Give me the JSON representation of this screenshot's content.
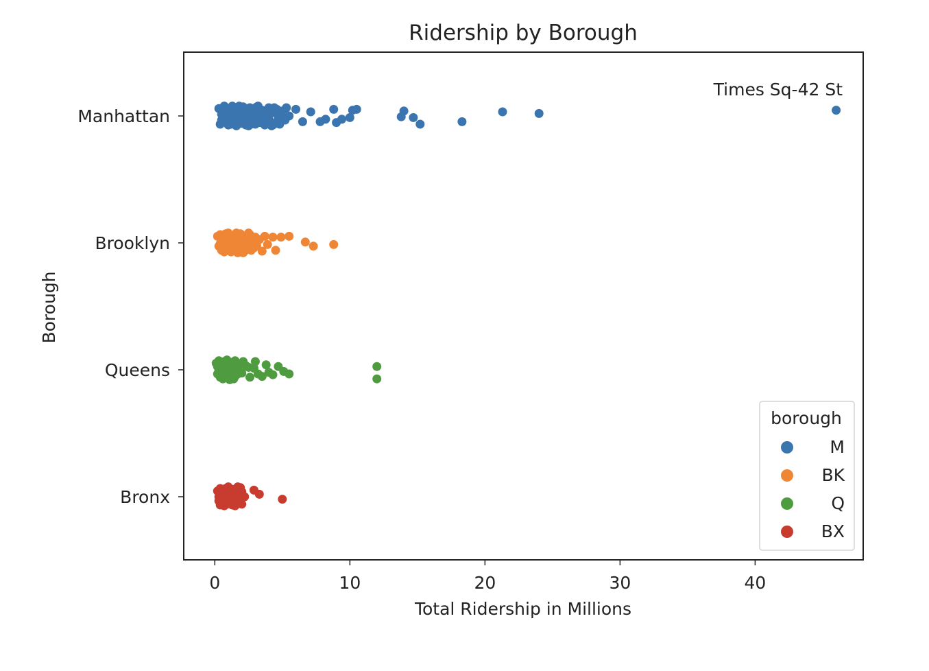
{
  "chart_data": {
    "type": "scatter",
    "title": "Ridership by Borough",
    "xlabel": "Total Ridership in Millions",
    "ylabel": "Borough",
    "xlim": [
      -2.3,
      48
    ],
    "xticks": [
      0,
      10,
      20,
      30,
      40
    ],
    "grid": false,
    "categories": [
      "Manhattan",
      "Brooklyn",
      "Queens",
      "Bronx"
    ],
    "annotation": {
      "text": "Times Sq-42 St",
      "x": 46.0,
      "category": "Manhattan"
    },
    "legend": {
      "title": "borough",
      "placement": "lower-right"
    },
    "series": [
      {
        "name": "M",
        "category": "Manhattan",
        "color": "#3a75b0",
        "points": [
          [
            0.3,
            -0.09
          ],
          [
            0.5,
            0.05
          ],
          [
            0.7,
            -0.12
          ],
          [
            0.9,
            0.08
          ],
          [
            1.1,
            -0.03
          ],
          [
            1.2,
            0.1
          ],
          [
            1.4,
            -0.08
          ],
          [
            1.5,
            0.02
          ],
          [
            1.6,
            0.12
          ],
          [
            1.7,
            -0.1
          ],
          [
            1.8,
            0.06
          ],
          [
            1.9,
            -0.04
          ],
          [
            2.0,
            0.09
          ],
          [
            2.1,
            -0.11
          ],
          [
            2.2,
            0.03
          ],
          [
            2.3,
            0.11
          ],
          [
            2.4,
            -0.06
          ],
          [
            2.5,
            0.07
          ],
          [
            2.6,
            -0.02
          ],
          [
            2.7,
            0.1
          ],
          [
            2.8,
            -0.09
          ],
          [
            2.9,
            0.04
          ],
          [
            3.0,
            -0.05
          ],
          [
            3.1,
            0.08
          ],
          [
            3.2,
            -0.12
          ],
          [
            3.3,
            0.01
          ],
          [
            3.4,
            0.06
          ],
          [
            3.5,
            -0.07
          ],
          [
            3.6,
            0.09
          ],
          [
            3.7,
            -0.03
          ],
          [
            3.8,
            0.05
          ],
          [
            4.0,
            -0.1
          ],
          [
            4.1,
            0.07
          ],
          [
            4.2,
            0.12
          ],
          [
            4.3,
            -0.04
          ],
          [
            4.5,
            0.09
          ],
          [
            4.6,
            -0.08
          ],
          [
            4.7,
            0.03
          ],
          [
            4.8,
            0.1
          ],
          [
            5.0,
            -0.06
          ],
          [
            5.2,
            0.05
          ],
          [
            5.3,
            -0.1
          ],
          [
            5.5,
            0.0
          ],
          [
            0.4,
            0.1
          ],
          [
            0.6,
            -0.05
          ],
          [
            0.8,
            0.02
          ],
          [
            1.0,
            0.11
          ],
          [
            1.3,
            -0.12
          ],
          [
            1.6,
            -0.06
          ],
          [
            1.9,
            0.04
          ],
          [
            2.2,
            -0.09
          ],
          [
            2.5,
            0.12
          ],
          [
            2.8,
            0.02
          ],
          [
            3.1,
            -0.11
          ],
          [
            3.4,
            -0.03
          ],
          [
            3.7,
            0.11
          ],
          [
            4.0,
            0.04
          ],
          [
            4.4,
            -0.1
          ],
          [
            0.6,
            0.07
          ],
          [
            1.0,
            -0.09
          ],
          [
            1.4,
            0.05
          ],
          [
            1.8,
            -0.12
          ],
          [
            2.0,
            0.01
          ],
          [
            2.4,
            0.06
          ],
          [
            2.7,
            -0.06
          ],
          [
            3.0,
            0.1
          ],
          [
            3.5,
            0.03
          ],
          [
            3.9,
            -0.07
          ],
          [
            4.3,
            0.11
          ],
          [
            0.5,
            -0.02
          ],
          [
            1.2,
            0.03
          ],
          [
            1.7,
            0.09
          ],
          [
            2.1,
            0.06
          ],
          [
            2.6,
            -0.1
          ],
          [
            3.3,
            0.08
          ],
          [
            3.6,
            -0.01
          ],
          [
            4.9,
            -0.03
          ],
          [
            6.0,
            -0.08
          ],
          [
            6.5,
            0.07
          ],
          [
            7.1,
            -0.05
          ],
          [
            7.8,
            0.07
          ],
          [
            8.2,
            0.04
          ],
          [
            8.8,
            -0.08
          ],
          [
            9.0,
            0.08
          ],
          [
            9.4,
            0.04
          ],
          [
            10.0,
            0.02
          ],
          [
            10.2,
            -0.07
          ],
          [
            10.5,
            -0.08
          ],
          [
            13.8,
            0.01
          ],
          [
            14.0,
            -0.06
          ],
          [
            14.7,
            0.02
          ],
          [
            15.2,
            0.1
          ],
          [
            18.3,
            0.07
          ],
          [
            21.3,
            -0.05
          ],
          [
            24.0,
            -0.03
          ],
          [
            46.0,
            -0.07
          ]
        ]
      },
      {
        "name": "BK",
        "category": "Brooklyn",
        "color": "#ef8636",
        "points": [
          [
            0.2,
            -0.08
          ],
          [
            0.3,
            0.04
          ],
          [
            0.4,
            -0.1
          ],
          [
            0.5,
            0.09
          ],
          [
            0.6,
            -0.02
          ],
          [
            0.7,
            0.11
          ],
          [
            0.8,
            -0.07
          ],
          [
            0.9,
            0.03
          ],
          [
            1.0,
            -0.12
          ],
          [
            1.1,
            0.06
          ],
          [
            1.2,
            -0.04
          ],
          [
            1.3,
            0.1
          ],
          [
            1.4,
            -0.09
          ],
          [
            1.5,
            0.02
          ],
          [
            1.6,
            0.08
          ],
          [
            1.7,
            -0.06
          ],
          [
            1.8,
            0.05
          ],
          [
            1.9,
            -0.11
          ],
          [
            2.0,
            0.0
          ],
          [
            2.1,
            0.12
          ],
          [
            2.2,
            -0.03
          ],
          [
            2.3,
            0.07
          ],
          [
            2.4,
            -0.08
          ],
          [
            2.5,
            0.04
          ],
          [
            2.6,
            -0.1
          ],
          [
            2.7,
            0.09
          ],
          [
            2.8,
            -0.02
          ],
          [
            2.9,
            0.06
          ],
          [
            3.0,
            -0.07
          ],
          [
            0.4,
            0.01
          ],
          [
            0.6,
            0.07
          ],
          [
            0.8,
            -0.11
          ],
          [
            1.0,
            0.05
          ],
          [
            1.2,
            0.11
          ],
          [
            1.4,
            0.03
          ],
          [
            1.6,
            -0.12
          ],
          [
            1.8,
            -0.01
          ],
          [
            2.0,
            -0.09
          ],
          [
            2.2,
            0.1
          ],
          [
            2.4,
            0.02
          ],
          [
            2.6,
            0.08
          ],
          [
            0.5,
            -0.05
          ],
          [
            0.9,
            -0.09
          ],
          [
            1.3,
            -0.01
          ],
          [
            1.7,
            0.12
          ],
          [
            2.1,
            -0.05
          ],
          [
            2.5,
            -0.12
          ],
          [
            3.1,
            0.03
          ],
          [
            3.3,
            -0.04
          ],
          [
            3.5,
            0.1
          ],
          [
            3.7,
            -0.08
          ],
          [
            3.9,
            0.02
          ],
          [
            4.3,
            -0.07
          ],
          [
            4.5,
            0.09
          ],
          [
            4.9,
            -0.07
          ],
          [
            5.5,
            -0.08
          ],
          [
            6.7,
            -0.01
          ],
          [
            7.3,
            0.04
          ],
          [
            8.8,
            0.02
          ]
        ]
      },
      {
        "name": "Q",
        "category": "Queens",
        "color": "#4e9c3f",
        "points": [
          [
            0.1,
            -0.08
          ],
          [
            0.2,
            0.05
          ],
          [
            0.3,
            -0.11
          ],
          [
            0.4,
            0.09
          ],
          [
            0.5,
            -0.03
          ],
          [
            0.6,
            0.11
          ],
          [
            0.7,
            -0.07
          ],
          [
            0.8,
            0.03
          ],
          [
            0.9,
            -0.12
          ],
          [
            1.0,
            0.06
          ],
          [
            1.1,
            -0.04
          ],
          [
            1.2,
            0.1
          ],
          [
            1.3,
            -0.09
          ],
          [
            1.4,
            0.02
          ],
          [
            1.5,
            0.08
          ],
          [
            1.6,
            -0.06
          ],
          [
            1.7,
            0.05
          ],
          [
            0.3,
            0.01
          ],
          [
            0.5,
            0.07
          ],
          [
            0.7,
            -0.1
          ],
          [
            0.9,
            0.04
          ],
          [
            1.1,
            0.12
          ],
          [
            1.3,
            0.0
          ],
          [
            1.5,
            -0.11
          ],
          [
            1.7,
            -0.02
          ],
          [
            0.2,
            -0.04
          ],
          [
            0.6,
            -0.06
          ],
          [
            1.0,
            -0.09
          ],
          [
            1.4,
            0.11
          ],
          [
            2.0,
            0.04
          ],
          [
            2.3,
            -0.05
          ],
          [
            2.6,
            0.09
          ],
          [
            2.9,
            -0.02
          ],
          [
            3.2,
            0.05
          ],
          [
            3.5,
            0.08
          ],
          [
            3.8,
            -0.06
          ],
          [
            4.0,
            0.03
          ],
          [
            4.3,
            0.06
          ],
          [
            4.7,
            -0.04
          ],
          [
            5.1,
            0.02
          ],
          [
            5.5,
            0.05
          ],
          [
            2.1,
            -0.1
          ],
          [
            2.5,
            -0.03
          ],
          [
            3.0,
            -0.1
          ],
          [
            12.0,
            0.11
          ],
          [
            12.0,
            -0.04
          ]
        ]
      },
      {
        "name": "BX",
        "category": "Bronx",
        "color": "#c83b2f",
        "points": [
          [
            0.2,
            -0.07
          ],
          [
            0.3,
            0.05
          ],
          [
            0.4,
            -0.1
          ],
          [
            0.5,
            0.08
          ],
          [
            0.6,
            -0.03
          ],
          [
            0.7,
            0.11
          ],
          [
            0.8,
            -0.06
          ],
          [
            0.9,
            0.02
          ],
          [
            1.0,
            -0.12
          ],
          [
            1.1,
            0.06
          ],
          [
            1.2,
            -0.04
          ],
          [
            1.3,
            0.1
          ],
          [
            1.4,
            -0.09
          ],
          [
            1.5,
            0.03
          ],
          [
            1.6,
            0.07
          ],
          [
            1.7,
            -0.05
          ],
          [
            1.8,
            0.04
          ],
          [
            1.9,
            -0.11
          ],
          [
            2.0,
            0.09
          ],
          [
            0.3,
            0.0
          ],
          [
            0.5,
            -0.05
          ],
          [
            0.7,
            0.03
          ],
          [
            0.9,
            0.09
          ],
          [
            1.1,
            -0.08
          ],
          [
            1.3,
            -0.01
          ],
          [
            1.5,
            0.11
          ],
          [
            1.7,
            -0.12
          ],
          [
            1.9,
            0.01
          ],
          [
            0.4,
            0.1
          ],
          [
            0.8,
            -0.1
          ],
          [
            1.2,
            0.05
          ],
          [
            1.6,
            -0.02
          ],
          [
            2.0,
            -0.06
          ],
          [
            2.2,
            0.0
          ],
          [
            2.9,
            -0.08
          ],
          [
            3.3,
            -0.03
          ],
          [
            5.0,
            0.03
          ]
        ]
      }
    ]
  }
}
